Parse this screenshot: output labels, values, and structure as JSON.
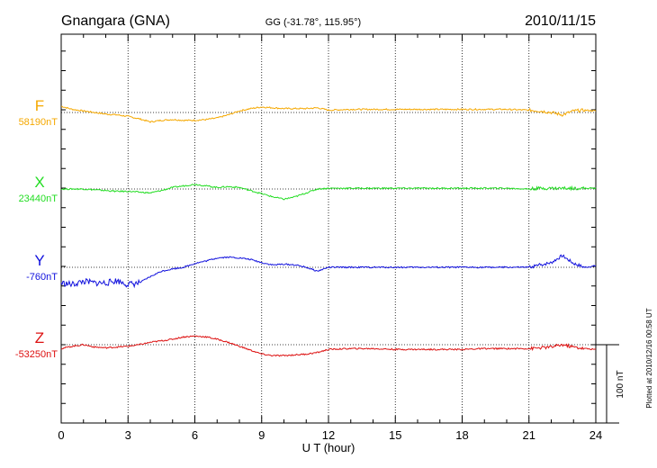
{
  "header": {
    "station": "Gnangara (GNA)",
    "coords": "GG (-31.78°, 115.95°)",
    "date": "2010/11/15"
  },
  "plotted_note": "Plotted at 2010/12/16 00:58 UT",
  "chart_data": {
    "type": "line",
    "title": "Gnangara (GNA)",
    "subtitle": "GG (-31.78°, 115.95°)",
    "date": "2010/11/15",
    "xlabel": "U T (hour)",
    "xlim": [
      0,
      24
    ],
    "xticks": [
      0,
      3,
      6,
      9,
      12,
      15,
      18,
      21,
      24
    ],
    "xtick_labels": [
      "0",
      "3",
      "6",
      "9",
      "12",
      "15",
      "18",
      "21",
      "24"
    ],
    "grid": true,
    "scale_bar": {
      "label": "100 nT",
      "value_nT": 100
    },
    "y_units_note": "Each series plotted as offset (nT) from its baseline value",
    "series": [
      {
        "name": "F",
        "baseline_label": "58190nT",
        "color": "#f5a800",
        "x": [
          0,
          0.5,
          1,
          1.5,
          2,
          2.5,
          3,
          3.5,
          4,
          4.5,
          5,
          5.5,
          6,
          6.5,
          7,
          7.5,
          8,
          8.5,
          9,
          9.5,
          10,
          10.5,
          11,
          11.5,
          12,
          13,
          14,
          15,
          16,
          17,
          18,
          19,
          20,
          21,
          21.5,
          22,
          22.5,
          23,
          23.5,
          24
        ],
        "values": [
          8,
          4,
          2,
          0,
          -2,
          -3,
          -5,
          -8,
          -12,
          -10,
          -9,
          -10,
          -10,
          -9,
          -7,
          -3,
          2,
          5,
          7,
          6,
          5,
          5,
          5,
          6,
          3,
          4,
          4,
          4,
          4,
          4,
          4,
          4,
          4,
          3,
          2,
          0,
          -3,
          2,
          3,
          2
        ]
      },
      {
        "name": "X",
        "baseline_label": "23440nT",
        "color": "#22dd22",
        "x": [
          0,
          0.5,
          1,
          1.5,
          2,
          2.5,
          3,
          3.5,
          4,
          4.5,
          5,
          5.5,
          6,
          6.5,
          7,
          7.5,
          8,
          8.5,
          9,
          9.5,
          10,
          10.5,
          11,
          11.5,
          12,
          13,
          14,
          15,
          16,
          17,
          18,
          19,
          20,
          21,
          21.5,
          22,
          22.5,
          23,
          23.5,
          24
        ],
        "values": [
          0,
          0,
          0,
          -1,
          -2,
          -3,
          -3,
          -4,
          -5,
          -2,
          2,
          4,
          6,
          4,
          2,
          3,
          2,
          -2,
          -6,
          -10,
          -13,
          -10,
          -5,
          0,
          1,
          1,
          1,
          1,
          1,
          1,
          1,
          1,
          1,
          0,
          1,
          1,
          1,
          1,
          1,
          1
        ]
      },
      {
        "name": "Y",
        "baseline_label": "-760nT",
        "color": "#1111dd",
        "x": [
          0,
          0.5,
          1,
          1.5,
          2,
          2.5,
          3,
          3.5,
          4,
          4.5,
          5,
          5.5,
          6,
          6.5,
          7,
          7.5,
          8,
          8.5,
          9,
          9.5,
          10,
          10.5,
          11,
          11.5,
          12,
          13,
          14,
          15,
          16,
          17,
          18,
          19,
          20,
          21,
          21.5,
          22,
          22.5,
          23,
          23.5,
          24
        ],
        "values": [
          -20,
          -22,
          -18,
          -20,
          -20,
          -17,
          -22,
          -20,
          -12,
          -5,
          -2,
          0,
          5,
          8,
          12,
          13,
          12,
          10,
          6,
          3,
          4,
          3,
          0,
          -5,
          0,
          0,
          0,
          0,
          0,
          0,
          0,
          0,
          0,
          0,
          3,
          6,
          15,
          5,
          0,
          2
        ]
      },
      {
        "name": "Z",
        "baseline_label": "-53250nT",
        "color": "#dd1111",
        "x": [
          0,
          0.5,
          1,
          1.5,
          2,
          2.5,
          3,
          3.5,
          4,
          4.5,
          5,
          5.5,
          6,
          6.5,
          7,
          7.5,
          8,
          8.5,
          9,
          9.5,
          10,
          10.5,
          11,
          11.5,
          12,
          13,
          14,
          15,
          16,
          17,
          18,
          19,
          20,
          21,
          21.5,
          22,
          22.5,
          23,
          23.5,
          24
        ],
        "values": [
          -5,
          -2,
          0,
          -3,
          -4,
          -3,
          -2,
          0,
          3,
          5,
          7,
          10,
          11,
          10,
          7,
          3,
          -2,
          -7,
          -12,
          -14,
          -14,
          -13,
          -12,
          -10,
          -6,
          -5,
          -5,
          -6,
          -6,
          -6,
          -6,
          -5,
          -5,
          -5,
          -4,
          -3,
          0,
          -3,
          -5,
          -6
        ]
      }
    ]
  }
}
